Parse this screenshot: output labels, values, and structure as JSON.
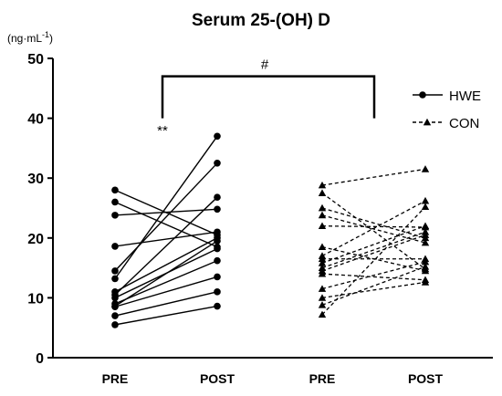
{
  "chart_data": {
    "type": "line",
    "title": "Serum 25-(OH) D",
    "unit_label": "(ng·mL",
    "unit_superscript": "-1",
    "unit_close": ")",
    "ylim": [
      0,
      50
    ],
    "yticks": [
      "0",
      "10",
      "20",
      "30",
      "40",
      "50"
    ],
    "xtick_labels": [
      "PRE",
      "POST",
      "PRE",
      "POST"
    ],
    "legend_position": "top-right",
    "annotations": {
      "within_group": "**",
      "between_group": "#"
    },
    "series": [
      {
        "name": "HWE",
        "style": "solid-circle",
        "pairs": [
          [
            28.0,
            20.5
          ],
          [
            26.0,
            18.5
          ],
          [
            23.8,
            24.8
          ],
          [
            18.6,
            21.0
          ],
          [
            14.5,
            32.5
          ],
          [
            13.2,
            37.0
          ],
          [
            11.0,
            20.0
          ],
          [
            10.5,
            26.8
          ],
          [
            10.0,
            18.2
          ],
          [
            9.0,
            16.2
          ],
          [
            8.6,
            19.5
          ],
          [
            8.5,
            13.5
          ],
          [
            7.0,
            11.0
          ],
          [
            5.5,
            8.6
          ]
        ]
      },
      {
        "name": "CON",
        "style": "dashed-triangle",
        "pairs": [
          [
            28.8,
            31.5
          ],
          [
            27.5,
            14.8
          ],
          [
            25.0,
            20.0
          ],
          [
            23.8,
            19.2
          ],
          [
            22.0,
            21.8
          ],
          [
            18.5,
            14.5
          ],
          [
            17.0,
            26.2
          ],
          [
            16.5,
            16.5
          ],
          [
            15.8,
            22.0
          ],
          [
            15.0,
            21.0
          ],
          [
            14.5,
            20.5
          ],
          [
            14.0,
            13.0
          ],
          [
            11.5,
            16.0
          ],
          [
            10.0,
            12.6
          ],
          [
            8.8,
            15.2
          ],
          [
            7.2,
            25.2
          ]
        ]
      }
    ]
  }
}
